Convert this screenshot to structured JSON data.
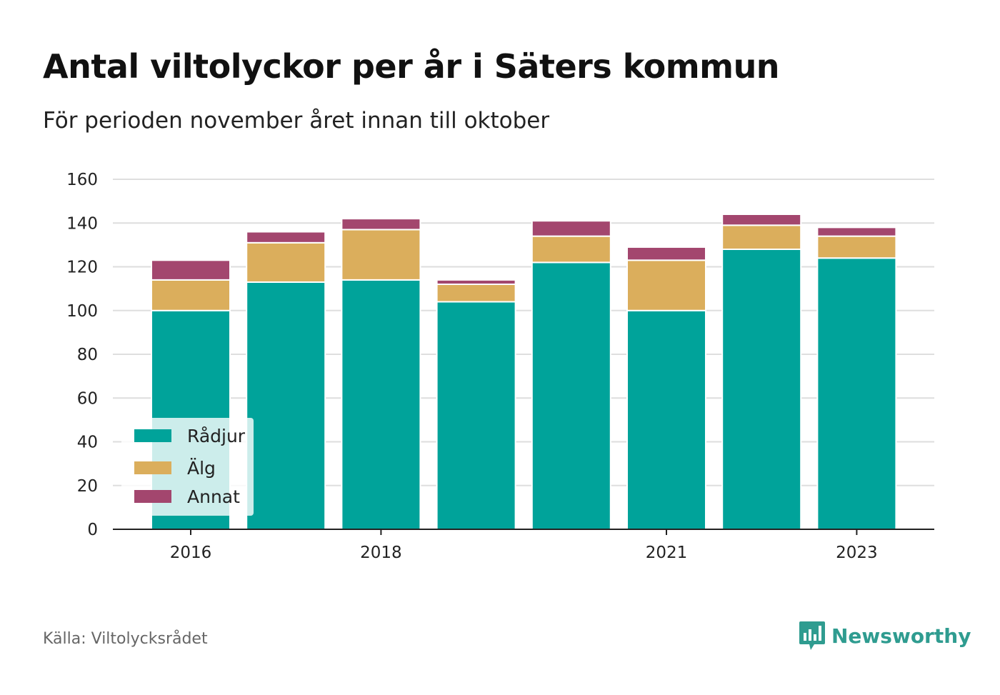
{
  "title": "Antal viltolyckor per år i Säters kommun",
  "subtitle": "För perioden november året innan till oktober",
  "source": "Källa: Viltolycksrådet",
  "brand": {
    "name": "Newsworthy",
    "icon": "newsworthy-logo-icon",
    "color": "#2f9c90"
  },
  "chart_data": {
    "type": "bar",
    "stacked": true,
    "x": [
      2016,
      2017,
      2018,
      2019,
      2020,
      2021,
      2022,
      2023
    ],
    "xticks": [
      2016,
      2018,
      2021,
      2023
    ],
    "xtick_labels": [
      "2016",
      "2018",
      "2021",
      "2023"
    ],
    "yticks": [
      0,
      20,
      40,
      60,
      80,
      100,
      120,
      140,
      160
    ],
    "ytick_labels": [
      "0",
      "20",
      "40",
      "60",
      "80",
      "100",
      "120",
      "140",
      "160"
    ],
    "ylim": [
      0,
      160
    ],
    "grid": true,
    "legend_position": "bottom-left",
    "series": [
      {
        "name": "Rådjur",
        "color": "#00a39a",
        "values": [
          100,
          113,
          114,
          104,
          122,
          100,
          128,
          124
        ]
      },
      {
        "name": "Älg",
        "color": "#dbae5c",
        "values": [
          14,
          18,
          23,
          8,
          12,
          23,
          11,
          10
        ]
      },
      {
        "name": "Annat",
        "color": "#a3466e",
        "values": [
          9,
          5,
          5,
          2,
          7,
          6,
          5,
          4
        ]
      }
    ]
  }
}
